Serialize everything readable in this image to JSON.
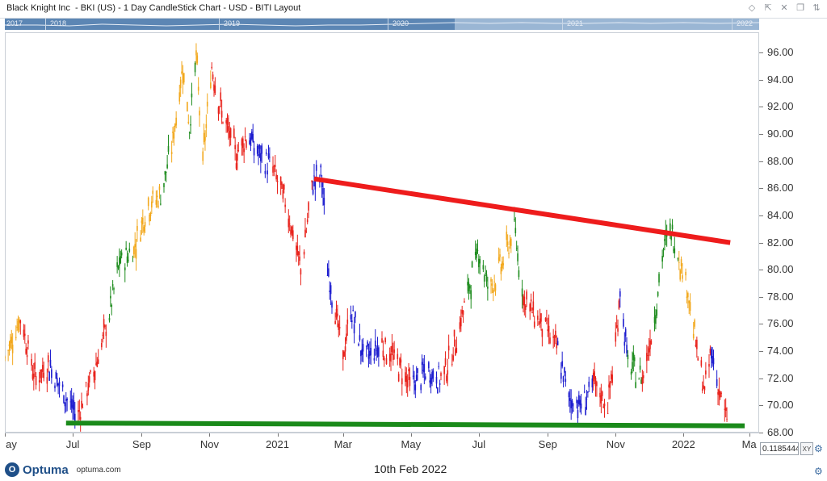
{
  "window": {
    "title": "Black Knight Inc  - BKI (US) - 1 Day CandleStick Chart - USD - BITI Layout"
  },
  "navigator": {
    "years": [
      "2017",
      "2018",
      "2019",
      "2020",
      "2021",
      "2022"
    ]
  },
  "footer": {
    "brand": "Optuma",
    "url": "optuma.com",
    "date": "10th Feb 2022"
  },
  "readout": {
    "value": "0.1185444",
    "xy_label": "XY"
  },
  "colors": {
    "up_trend": "#1e8c1e",
    "down_trend": "#e8231c",
    "neutral_blue": "#1c1ccf",
    "neutral_orange": "#f2a81d",
    "resistance_line": "#ee1c1c",
    "support_line": "#1a8a1a"
  },
  "chart_data": {
    "type": "line",
    "ylim": [
      68,
      97.5
    ],
    "yticks": [
      "68.00",
      "70.00",
      "72.00",
      "74.00",
      "76.00",
      "78.00",
      "80.00",
      "82.00",
      "84.00",
      "86.00",
      "88.00",
      "90.00",
      "92.00",
      "94.00",
      "96.00"
    ],
    "xticks": [
      {
        "label": "ay",
        "date": "2020-05-01"
      },
      {
        "label": "Jul",
        "date": "2020-07-01"
      },
      {
        "label": "Sep",
        "date": "2020-09-01"
      },
      {
        "label": "Nov",
        "date": "2020-11-01"
      },
      {
        "label": "2021",
        "date": "2021-01-01"
      },
      {
        "label": "Mar",
        "date": "2021-03-01"
      },
      {
        "label": "May",
        "date": "2021-05-01"
      },
      {
        "label": "Jul",
        "date": "2021-07-01"
      },
      {
        "label": "Sep",
        "date": "2021-09-01"
      },
      {
        "label": "Nov",
        "date": "2021-11-01"
      },
      {
        "label": "2022",
        "date": "2022-01-01"
      },
      {
        "label": "Ma",
        "date": "2022-03-01"
      }
    ],
    "xlim": [
      "2020-05-01",
      "2022-03-10"
    ],
    "price_path": [
      {
        "date": "2020-05-01",
        "close": 73.5,
        "color": "orange"
      },
      {
        "date": "2020-05-15",
        "close": 76.5,
        "color": "red"
      },
      {
        "date": "2020-05-28",
        "close": 72.0,
        "color": "red"
      },
      {
        "date": "2020-06-10",
        "close": 73.0,
        "color": "blue"
      },
      {
        "date": "2020-06-22",
        "close": 71.0,
        "color": "blue"
      },
      {
        "date": "2020-07-05",
        "close": 69.2,
        "color": "red"
      },
      {
        "date": "2020-07-20",
        "close": 72.5,
        "color": "red"
      },
      {
        "date": "2020-08-01",
        "close": 76.0,
        "color": "green"
      },
      {
        "date": "2020-08-12",
        "close": 80.5,
        "color": "green"
      },
      {
        "date": "2020-08-25",
        "close": 81.5,
        "color": "orange"
      },
      {
        "date": "2020-09-05",
        "close": 84.5,
        "color": "orange"
      },
      {
        "date": "2020-09-18",
        "close": 85.5,
        "color": "green"
      },
      {
        "date": "2020-09-28",
        "close": 89.0,
        "color": "orange"
      },
      {
        "date": "2020-10-08",
        "close": 95.0,
        "color": "orange"
      },
      {
        "date": "2020-10-14",
        "close": 90.5,
        "color": "green"
      },
      {
        "date": "2020-10-20",
        "close": 95.8,
        "color": "orange"
      },
      {
        "date": "2020-10-26",
        "close": 88.0,
        "color": "orange"
      },
      {
        "date": "2020-11-03",
        "close": 95.0,
        "color": "red"
      },
      {
        "date": "2020-11-12",
        "close": 91.5,
        "color": "red"
      },
      {
        "date": "2020-11-25",
        "close": 88.5,
        "color": "red"
      },
      {
        "date": "2020-12-05",
        "close": 90.0,
        "color": "blue"
      },
      {
        "date": "2020-12-15",
        "close": 88.5,
        "color": "blue"
      },
      {
        "date": "2020-12-28",
        "close": 87.5,
        "color": "red"
      },
      {
        "date": "2021-01-10",
        "close": 84.5,
        "color": "red"
      },
      {
        "date": "2021-01-22",
        "close": 80.0,
        "color": "red"
      },
      {
        "date": "2021-02-02",
        "close": 86.5,
        "color": "blue"
      },
      {
        "date": "2021-02-10",
        "close": 87.0,
        "color": "blue"
      },
      {
        "date": "2021-02-15",
        "close": 80.0,
        "color": "blue"
      },
      {
        "date": "2021-02-22",
        "close": 77.0,
        "color": "red"
      },
      {
        "date": "2021-03-01",
        "close": 73.5,
        "color": "red"
      },
      {
        "date": "2021-03-08",
        "close": 77.0,
        "color": "blue"
      },
      {
        "date": "2021-03-20",
        "close": 73.5,
        "color": "blue"
      },
      {
        "date": "2021-04-05",
        "close": 74.5,
        "color": "red"
      },
      {
        "date": "2021-04-20",
        "close": 73.0,
        "color": "red"
      },
      {
        "date": "2021-05-01",
        "close": 71.5,
        "color": "blue"
      },
      {
        "date": "2021-05-15",
        "close": 72.5,
        "color": "blue"
      },
      {
        "date": "2021-05-28",
        "close": 72.0,
        "color": "red"
      },
      {
        "date": "2021-06-08",
        "close": 74.0,
        "color": "red"
      },
      {
        "date": "2021-06-20",
        "close": 78.0,
        "color": "green"
      },
      {
        "date": "2021-07-01",
        "close": 81.5,
        "color": "green"
      },
      {
        "date": "2021-07-10",
        "close": 78.5,
        "color": "orange"
      },
      {
        "date": "2021-07-22",
        "close": 80.5,
        "color": "orange"
      },
      {
        "date": "2021-08-02",
        "close": 83.0,
        "color": "green"
      },
      {
        "date": "2021-08-10",
        "close": 78.0,
        "color": "red"
      },
      {
        "date": "2021-08-22",
        "close": 76.5,
        "color": "red"
      },
      {
        "date": "2021-09-01",
        "close": 75.5,
        "color": "red"
      },
      {
        "date": "2021-09-10",
        "close": 74.0,
        "color": "blue"
      },
      {
        "date": "2021-09-20",
        "close": 70.5,
        "color": "blue"
      },
      {
        "date": "2021-10-01",
        "close": 70.0,
        "color": "blue"
      },
      {
        "date": "2021-10-12",
        "close": 71.5,
        "color": "red"
      },
      {
        "date": "2021-10-25",
        "close": 70.0,
        "color": "red"
      },
      {
        "date": "2021-11-01",
        "close": 74.5,
        "color": "red"
      },
      {
        "date": "2021-11-05",
        "close": 78.5,
        "color": "blue"
      },
      {
        "date": "2021-11-12",
        "close": 73.0,
        "color": "green"
      },
      {
        "date": "2021-11-25",
        "close": 72.0,
        "color": "red"
      },
      {
        "date": "2021-12-05",
        "close": 76.0,
        "color": "green"
      },
      {
        "date": "2021-12-14",
        "close": 81.5,
        "color": "green"
      },
      {
        "date": "2021-12-20",
        "close": 83.0,
        "color": "green"
      },
      {
        "date": "2021-12-28",
        "close": 81.0,
        "color": "orange"
      },
      {
        "date": "2022-01-05",
        "close": 78.5,
        "color": "orange"
      },
      {
        "date": "2022-01-12",
        "close": 74.5,
        "color": "red"
      },
      {
        "date": "2022-01-20",
        "close": 71.0,
        "color": "red"
      },
      {
        "date": "2022-01-26",
        "close": 74.0,
        "color": "blue"
      },
      {
        "date": "2022-02-01",
        "close": 71.5,
        "color": "red"
      },
      {
        "date": "2022-02-08",
        "close": 69.0,
        "color": "red"
      },
      {
        "date": "2022-02-10",
        "close": 69.5,
        "color": "red"
      }
    ],
    "trendlines": [
      {
        "color": "resistance",
        "from": {
          "date": "2021-02-03",
          "value": 86.7
        },
        "to": {
          "date": "2022-02-12",
          "value": 82.0
        }
      },
      {
        "color": "support",
        "from": {
          "date": "2020-06-25",
          "value": 68.7
        },
        "to": {
          "date": "2022-02-25",
          "value": 68.5
        }
      }
    ]
  }
}
